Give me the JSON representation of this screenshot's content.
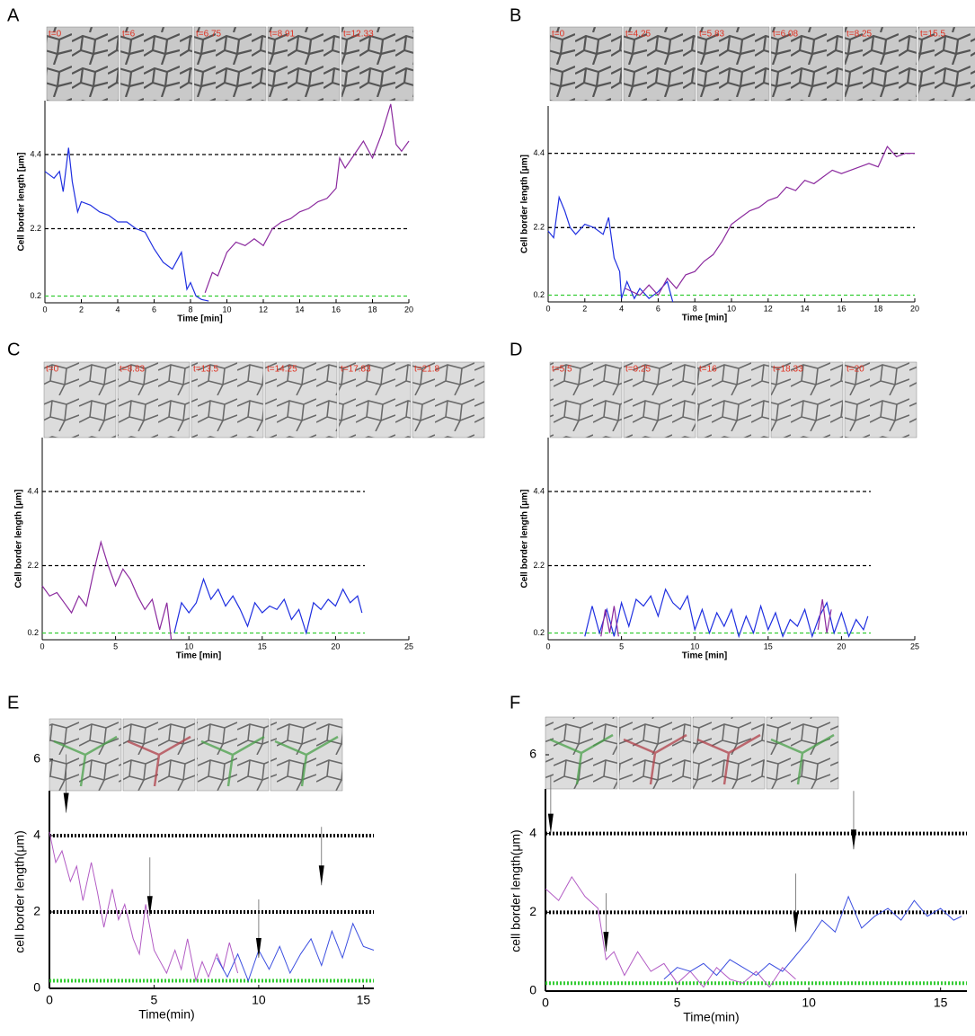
{
  "chart_data": [
    {
      "type": "line",
      "panel": "A",
      "frames": [
        "t=0",
        "t=6",
        "t=6.75",
        "t=8.91",
        "t=12.33"
      ],
      "xlabel": "Time [min]",
      "ylabel": "Cell border length [μm]",
      "xlim": [
        0,
        20
      ],
      "xticks": [
        0,
        2,
        4,
        6,
        8,
        10,
        12,
        14,
        16,
        18,
        20
      ],
      "ylim": [
        0,
        6
      ],
      "yticks": [
        0.2,
        2.2,
        4.4
      ],
      "line_style": "dashed",
      "reference_lines": [
        {
          "value": 4.4,
          "color": "#000000"
        },
        {
          "value": 2.2,
          "color": "#000000"
        },
        {
          "value": 0.2,
          "color": "#33cc33"
        }
      ],
      "series": [
        {
          "color": "#1f2fe0",
          "x": [
            0,
            0.5,
            0.8,
            1,
            1.3,
            1.5,
            1.8,
            2,
            2.5,
            3,
            3.5,
            4,
            4.5,
            5,
            5.5,
            6,
            6.5,
            7,
            7.5,
            7.8,
            8,
            8.3,
            8.6,
            9
          ],
          "values": [
            3.9,
            3.7,
            3.9,
            3.3,
            4.6,
            3.6,
            2.7,
            3.0,
            2.9,
            2.7,
            2.6,
            2.4,
            2.4,
            2.2,
            2.1,
            1.6,
            1.2,
            1.0,
            1.5,
            0.4,
            0.6,
            0.2,
            0.1,
            0.05
          ]
        },
        {
          "color": "#8b2a9e",
          "x": [
            8.8,
            9.2,
            9.5,
            10,
            10.5,
            11,
            11.5,
            12,
            12.5,
            13,
            13.5,
            14,
            14.5,
            15,
            15.5,
            16,
            16.2,
            16.5,
            17,
            17.5,
            18,
            18.5,
            19,
            19.3,
            19.6,
            20
          ],
          "values": [
            0.3,
            0.9,
            0.8,
            1.5,
            1.8,
            1.7,
            1.9,
            1.7,
            2.2,
            2.4,
            2.5,
            2.7,
            2.8,
            3.0,
            3.1,
            3.4,
            4.3,
            4.0,
            4.4,
            4.8,
            4.3,
            5.0,
            5.9,
            4.7,
            4.5,
            4.8
          ]
        }
      ]
    },
    {
      "type": "line",
      "panel": "B",
      "frames": [
        "t=0",
        "t=4.25",
        "t=5.83",
        "t=6.08",
        "t=8.25",
        "t=15.5"
      ],
      "xlabel": "Time [min]",
      "ylabel": "Cell border length [μm]",
      "xlim": [
        0,
        20
      ],
      "xticks": [
        0,
        2,
        4,
        6,
        8,
        10,
        12,
        14,
        16,
        18,
        20
      ],
      "ylim": [
        0,
        5.8
      ],
      "yticks": [
        0.2,
        2.2,
        4.4
      ],
      "line_style": "dashed",
      "reference_lines": [
        {
          "value": 4.4,
          "color": "#000000"
        },
        {
          "value": 2.2,
          "color": "#000000"
        },
        {
          "value": 0.2,
          "color": "#33cc33"
        }
      ],
      "series": [
        {
          "color": "#1f2fe0",
          "x": [
            0,
            0.3,
            0.6,
            0.9,
            1.2,
            1.5,
            2,
            2.5,
            3,
            3.3,
            3.6,
            3.9,
            4,
            4.3,
            4.7,
            5,
            5.5,
            6,
            6.5,
            6.8
          ],
          "values": [
            2.1,
            1.9,
            3.1,
            2.7,
            2.2,
            2.0,
            2.3,
            2.2,
            2.0,
            2.5,
            1.3,
            0.9,
            0.1,
            0.6,
            0.1,
            0.4,
            0.1,
            0.3,
            0.6,
            0.0
          ]
        },
        {
          "color": "#8b2a9e",
          "x": [
            4.2,
            5,
            5.5,
            6,
            6.5,
            7,
            7.5,
            8,
            8.5,
            9,
            9.5,
            10,
            10.5,
            11,
            11.5,
            12,
            12.5,
            13,
            13.5,
            14,
            14.5,
            15,
            15.5,
            16,
            16.5,
            17,
            17.5,
            18,
            18.5,
            19,
            19.5,
            20
          ],
          "values": [
            0.4,
            0.2,
            0.5,
            0.2,
            0.7,
            0.4,
            0.8,
            0.9,
            1.2,
            1.4,
            1.8,
            2.3,
            2.5,
            2.7,
            2.8,
            3.0,
            3.1,
            3.4,
            3.3,
            3.6,
            3.5,
            3.7,
            3.9,
            3.8,
            3.9,
            4.0,
            4.1,
            4.0,
            4.6,
            4.3,
            4.4,
            4.4
          ]
        }
      ]
    },
    {
      "type": "line",
      "panel": "C",
      "frames": [
        "t=0",
        "t=8.83",
        "t=13.5",
        "t=14.25",
        "t=17.83",
        "t=21.8"
      ],
      "xlabel": "Time [min]",
      "ylabel": "Cell border length [μm]",
      "xlim": [
        0,
        25
      ],
      "xticks": [
        0,
        5,
        10,
        15,
        20,
        25
      ],
      "ylim": [
        0,
        6
      ],
      "yticks": [
        0.2,
        2.2,
        4.4
      ],
      "line_style": "dashed",
      "reference_xmax": 22,
      "reference_lines": [
        {
          "value": 4.4,
          "color": "#000000"
        },
        {
          "value": 2.2,
          "color": "#000000"
        },
        {
          "value": 0.2,
          "color": "#33cc33"
        }
      ],
      "series": [
        {
          "color": "#8b2a9e",
          "x": [
            0,
            0.5,
            1,
            1.5,
            2,
            2.5,
            3,
            3.5,
            4,
            4.5,
            5,
            5.5,
            6,
            6.5,
            7,
            7.5,
            8,
            8.5,
            8.8
          ],
          "values": [
            1.6,
            1.3,
            1.4,
            1.1,
            0.8,
            1.3,
            1.0,
            2.0,
            2.9,
            2.2,
            1.6,
            2.1,
            1.8,
            1.3,
            0.9,
            1.2,
            0.3,
            1.1,
            0.0
          ]
        },
        {
          "color": "#1f2fe0",
          "x": [
            9,
            9.5,
            10,
            10.5,
            11,
            11.5,
            12,
            12.5,
            13,
            13.5,
            14,
            14.5,
            15,
            15.5,
            16,
            16.5,
            17,
            17.5,
            18,
            18.5,
            19,
            19.5,
            20,
            20.5,
            21,
            21.5,
            21.8
          ],
          "values": [
            0.2,
            1.1,
            0.8,
            1.1,
            1.8,
            1.2,
            1.5,
            1.0,
            1.3,
            0.9,
            0.4,
            1.1,
            0.8,
            1.0,
            0.9,
            1.2,
            0.6,
            0.9,
            0.2,
            1.1,
            0.9,
            1.2,
            1.0,
            1.5,
            1.1,
            1.3,
            0.8
          ]
        }
      ]
    },
    {
      "type": "line",
      "panel": "D",
      "frames": [
        "t=5.5",
        "t=9.25",
        "t=16",
        "t=18.33",
        "t=20"
      ],
      "xlabel": "Time [min]",
      "ylabel": "Cell border length [μm]",
      "xlim": [
        0,
        25
      ],
      "xticks": [
        0,
        5,
        10,
        15,
        20,
        25
      ],
      "ylim": [
        0,
        6
      ],
      "yticks": [
        0.2,
        2.2,
        4.4
      ],
      "line_style": "dashed",
      "reference_xmax": 22,
      "reference_lines": [
        {
          "value": 4.4,
          "color": "#000000"
        },
        {
          "value": 2.2,
          "color": "#000000"
        },
        {
          "value": 0.2,
          "color": "#33cc33"
        }
      ],
      "series": [
        {
          "color": "#1f2fe0",
          "x": [
            2.5,
            3,
            3.5,
            4,
            4.5,
            5,
            5.5,
            6,
            6.5,
            7,
            7.5,
            8,
            8.5,
            9,
            9.5,
            10,
            10.5,
            11,
            11.5,
            12,
            12.5,
            13,
            13.5,
            14,
            14.5,
            15,
            15.5,
            16,
            16.5,
            17,
            17.5,
            18,
            18.5,
            19,
            19.5,
            20,
            20.5,
            21,
            21.5,
            21.8
          ],
          "values": [
            0.1,
            1.0,
            0.2,
            0.9,
            0.1,
            1.1,
            0.4,
            1.2,
            1.0,
            1.3,
            0.7,
            1.5,
            1.1,
            0.9,
            1.3,
            0.3,
            0.9,
            0.2,
            0.8,
            0.4,
            0.9,
            0.1,
            0.7,
            0.2,
            1.0,
            0.3,
            0.8,
            0.1,
            0.6,
            0.4,
            0.9,
            0.1,
            0.7,
            1.1,
            0.2,
            0.8,
            0.1,
            0.6,
            0.3,
            0.7
          ]
        },
        {
          "color": "#8b2a9e",
          "x": [
            3.6,
            3.9,
            4.2,
            4.5,
            4.8,
            10,
            18.4,
            18.7,
            19.0,
            19.3
          ],
          "values": [
            0.1,
            0.9,
            0.2,
            1.0,
            0.1,
            null,
            0.3,
            1.2,
            0.2,
            0.9
          ]
        }
      ]
    },
    {
      "type": "line",
      "panel": "E",
      "xlabel": "Time(min)",
      "ylabel": "cell border length(μm)",
      "xlim": [
        0,
        15.5
      ],
      "xticks": [
        0,
        5,
        10,
        15
      ],
      "ylim": [
        0,
        6
      ],
      "yticks": [
        0,
        2,
        4,
        6
      ],
      "line_style": "dotted",
      "reference_lines": [
        {
          "value": 4,
          "color": "#000000"
        },
        {
          "value": 2,
          "color": "#000000"
        },
        {
          "value": 0.2,
          "color": "#33cc33"
        }
      ],
      "arrows": [
        {
          "x": 0.8,
          "y": 4.6
        },
        {
          "x": 4.8,
          "y": 1.9
        },
        {
          "x": 10,
          "y": 0.8
        },
        {
          "x": 13,
          "y": 2.7
        }
      ],
      "series": [
        {
          "color": "#b25bc4",
          "x": [
            0,
            0.3,
            0.6,
            1,
            1.3,
            1.6,
            2,
            2.3,
            2.6,
            3,
            3.3,
            3.6,
            4,
            4.3,
            4.6,
            5,
            5.3,
            5.6,
            6,
            6.3,
            6.6,
            7,
            7.3,
            7.6,
            8,
            8.3,
            8.6,
            9
          ],
          "values": [
            4.1,
            3.3,
            3.6,
            2.8,
            3.2,
            2.3,
            3.3,
            2.5,
            1.6,
            2.6,
            1.8,
            2.2,
            1.3,
            0.9,
            2.2,
            1.0,
            0.7,
            0.4,
            1.0,
            0.5,
            1.3,
            0.2,
            0.7,
            0.3,
            0.9,
            0.5,
            1.2,
            0.4
          ]
        },
        {
          "color": "#3c4fe0",
          "x": [
            8,
            8.5,
            9,
            9.5,
            10,
            10.5,
            11,
            11.5,
            12,
            12.5,
            13,
            13.5,
            14,
            14.5,
            15,
            15.5
          ],
          "values": [
            0.8,
            0.3,
            0.9,
            0.2,
            1.0,
            0.5,
            1.1,
            0.4,
            0.9,
            1.3,
            0.6,
            1.5,
            0.8,
            1.7,
            1.1,
            1.0
          ]
        }
      ]
    },
    {
      "type": "line",
      "panel": "F",
      "xlabel": "Time(min)",
      "ylabel": "cell border length(μm)",
      "xlim": [
        0,
        16
      ],
      "xticks": [
        0,
        5,
        10,
        15
      ],
      "ylim": [
        0,
        6
      ],
      "yticks": [
        0,
        2,
        4,
        6
      ],
      "line_style": "dotted",
      "reference_lines": [
        {
          "value": 4,
          "color": "#000000"
        },
        {
          "value": 2,
          "color": "#000000"
        },
        {
          "value": 0.2,
          "color": "#33cc33"
        }
      ],
      "arrows": [
        {
          "x": 0.2,
          "y": 4.0
        },
        {
          "x": 2.3,
          "y": 1.0
        },
        {
          "x": 9.5,
          "y": 1.5
        },
        {
          "x": 11.7,
          "y": 3.6
        }
      ],
      "series": [
        {
          "color": "#b25bc4",
          "x": [
            0,
            0.5,
            1,
            1.5,
            2,
            2.3,
            2.6,
            3,
            3.5,
            4,
            4.5,
            5,
            5.5,
            6,
            6.5,
            7,
            7.5,
            8,
            8.5,
            9,
            9.5
          ],
          "values": [
            2.6,
            2.3,
            2.9,
            2.4,
            2.1,
            0.8,
            1.0,
            0.4,
            1.0,
            0.5,
            0.7,
            0.2,
            0.5,
            0.1,
            0.6,
            0.3,
            0.2,
            0.5,
            0.1,
            0.6,
            0.3
          ]
        },
        {
          "color": "#3c4fe0",
          "x": [
            4.5,
            5,
            5.5,
            6,
            6.5,
            7,
            7.5,
            8,
            8.5,
            9,
            9.5,
            10,
            10.5,
            11,
            11.5,
            12,
            12.5,
            13,
            13.5,
            14,
            14.5,
            15,
            15.5,
            15.8
          ],
          "values": [
            0.3,
            0.6,
            0.5,
            0.7,
            0.4,
            0.8,
            0.6,
            0.4,
            0.7,
            0.5,
            0.9,
            1.3,
            1.8,
            1.5,
            2.4,
            1.6,
            1.9,
            2.1,
            1.8,
            2.3,
            1.9,
            2.1,
            1.8,
            1.9
          ]
        }
      ]
    }
  ]
}
